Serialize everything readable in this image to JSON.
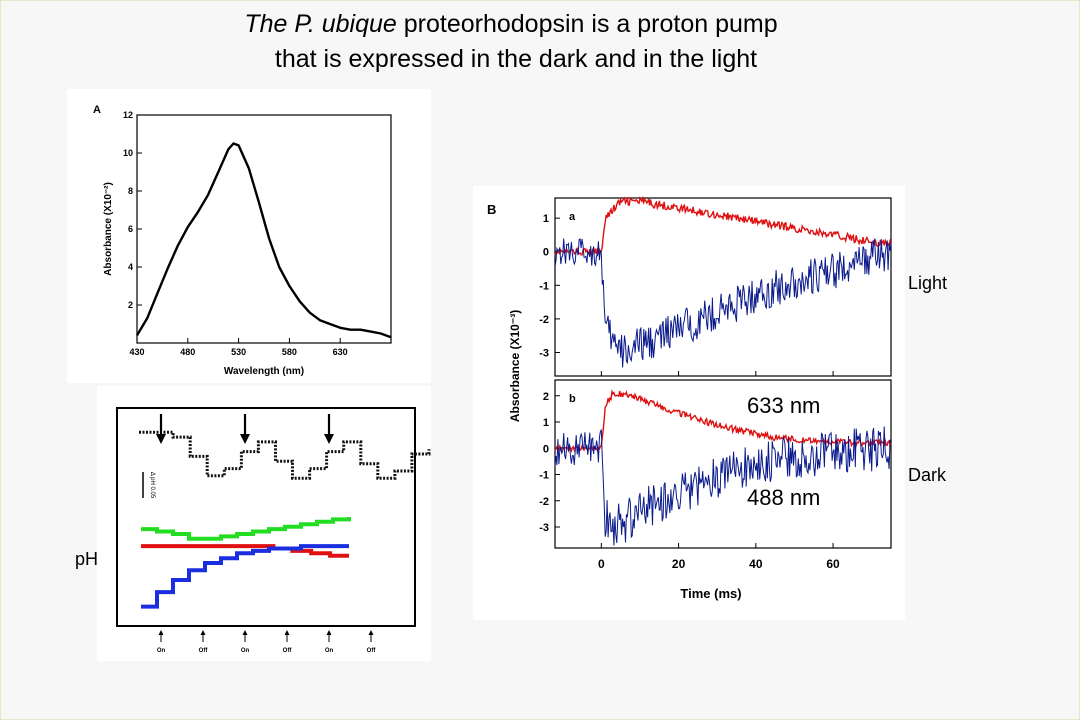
{
  "title": {
    "species": "The P. ubique",
    "line1_rest": " proteorhodopsin  is a proton pump",
    "line2": "that is expressed  in the dark and in the light"
  },
  "panel_a": {
    "label": "A",
    "chart_data": {
      "type": "line",
      "xlabel": "Wavelength (nm)",
      "ylabel": "Absorbance (X10⁻²)",
      "xlim": [
        430,
        680
      ],
      "ylim": [
        0,
        12
      ],
      "xticks": [
        430,
        480,
        530,
        580,
        630
      ],
      "yticks": [
        2,
        4,
        6,
        8,
        10,
        12
      ],
      "x": [
        430,
        440,
        450,
        460,
        470,
        480,
        490,
        500,
        510,
        520,
        525,
        530,
        540,
        550,
        560,
        570,
        580,
        590,
        600,
        610,
        620,
        630,
        640,
        650,
        660,
        670,
        680
      ],
      "y": [
        0.4,
        1.3,
        2.6,
        3.9,
        5.1,
        6.1,
        6.9,
        7.8,
        9.0,
        10.2,
        10.5,
        10.4,
        9.2,
        7.4,
        5.5,
        4.0,
        3.0,
        2.2,
        1.6,
        1.2,
        1.0,
        0.8,
        0.7,
        0.7,
        0.6,
        0.5,
        0.3
      ]
    }
  },
  "panel_b": {
    "label": "B",
    "sub_a": "a",
    "sub_b": "b",
    "ylabel": "Absorbance (X10⁻³)",
    "chart_data": [
      {
        "type": "line",
        "name": "a",
        "xlabel": "Time (ms)",
        "xlim": [
          -12,
          75
        ],
        "ylim": [
          -3.7,
          1.6
        ],
        "xticks": [
          0,
          20,
          40,
          60
        ],
        "yticks": [
          1,
          0,
          -1,
          -2,
          -3
        ],
        "series": [
          {
            "color": "#dd1111",
            "x": [
              -12,
              0,
              1,
              5,
              10,
              20,
              30,
              40,
              50,
              60,
              70,
              75
            ],
            "y": [
              0,
              0,
              1.0,
              1.5,
              1.5,
              1.3,
              1.1,
              0.9,
              0.7,
              0.5,
              0.3,
              0.2
            ]
          },
          {
            "color": "#0a1a8c",
            "x": [
              -12,
              0,
              1,
              5,
              10,
              20,
              30,
              40,
              50,
              60,
              70,
              75
            ],
            "y": [
              0,
              0,
              -2.3,
              -3.0,
              -2.8,
              -2.3,
              -1.8,
              -1.3,
              -0.9,
              -0.6,
              -0.2,
              0
            ]
          }
        ]
      },
      {
        "type": "line",
        "name": "b",
        "xlabel": "Time (ms)",
        "xlim": [
          -12,
          75
        ],
        "ylim": [
          -3.8,
          2.6
        ],
        "xticks": [
          0,
          20,
          40,
          60
        ],
        "yticks": [
          2,
          1,
          0,
          -1,
          -2,
          -3
        ],
        "series": [
          {
            "name": "633 nm",
            "color": "#dd1111",
            "x": [
              -12,
              0,
              1,
              3,
              8,
              15,
              25,
              35,
              45,
              55,
              65,
              75
            ],
            "y": [
              0,
              0,
              1.6,
              2.1,
              2.0,
              1.6,
              1.1,
              0.7,
              0.4,
              0.3,
              0.2,
              0.2
            ]
          },
          {
            "name": "488 nm",
            "color": "#0a1a8c",
            "x": [
              -12,
              0,
              1,
              3,
              8,
              15,
              25,
              35,
              45,
              55,
              65,
              75
            ],
            "y": [
              0,
              0,
              -2.6,
              -3.1,
              -2.6,
              -2.0,
              -1.4,
              -0.8,
              -0.5,
              -0.3,
              -0.1,
              0
            ]
          }
        ]
      }
    ]
  },
  "panel_c": {
    "delta_ph_label": "Δ pH 0.05",
    "switch_labels": [
      "On",
      "Off",
      "On",
      "Off",
      "On",
      "Off"
    ],
    "ph_label": "pH",
    "chart_data": {
      "type": "line",
      "series": [
        {
          "color": "#111111",
          "y": [
            7.6,
            7.6,
            7.58,
            7.5,
            7.42,
            7.45,
            7.52,
            7.56,
            7.48,
            7.41,
            7.45,
            7.52,
            7.56,
            7.47,
            7.41,
            7.44,
            7.51,
            7.53
          ]
        },
        {
          "color": "#22dd22",
          "y": [
            7.2,
            7.19,
            7.18,
            7.16,
            7.16,
            7.17,
            7.18,
            7.19,
            7.2,
            7.21,
            7.22,
            7.23,
            7.24,
            7.25
          ]
        },
        {
          "color": "#e01010",
          "y": [
            7.13,
            7.13,
            7.13,
            7.13,
            7.13,
            7.13,
            7.13,
            7.12,
            7.11,
            7.1,
            7.09,
            7.09
          ]
        },
        {
          "color": "#1a2ee0",
          "y": [
            6.88,
            6.94,
            6.99,
            7.03,
            7.06,
            7.08,
            7.1,
            7.11,
            7.12,
            7.12,
            7.13,
            7.13,
            7.13,
            7.13
          ]
        }
      ]
    }
  },
  "side_labels": {
    "light": "Light",
    "dark": "Dark"
  },
  "annotations": {
    "red_wavelength": "633 nm",
    "blue_wavelength": "488 nm"
  }
}
